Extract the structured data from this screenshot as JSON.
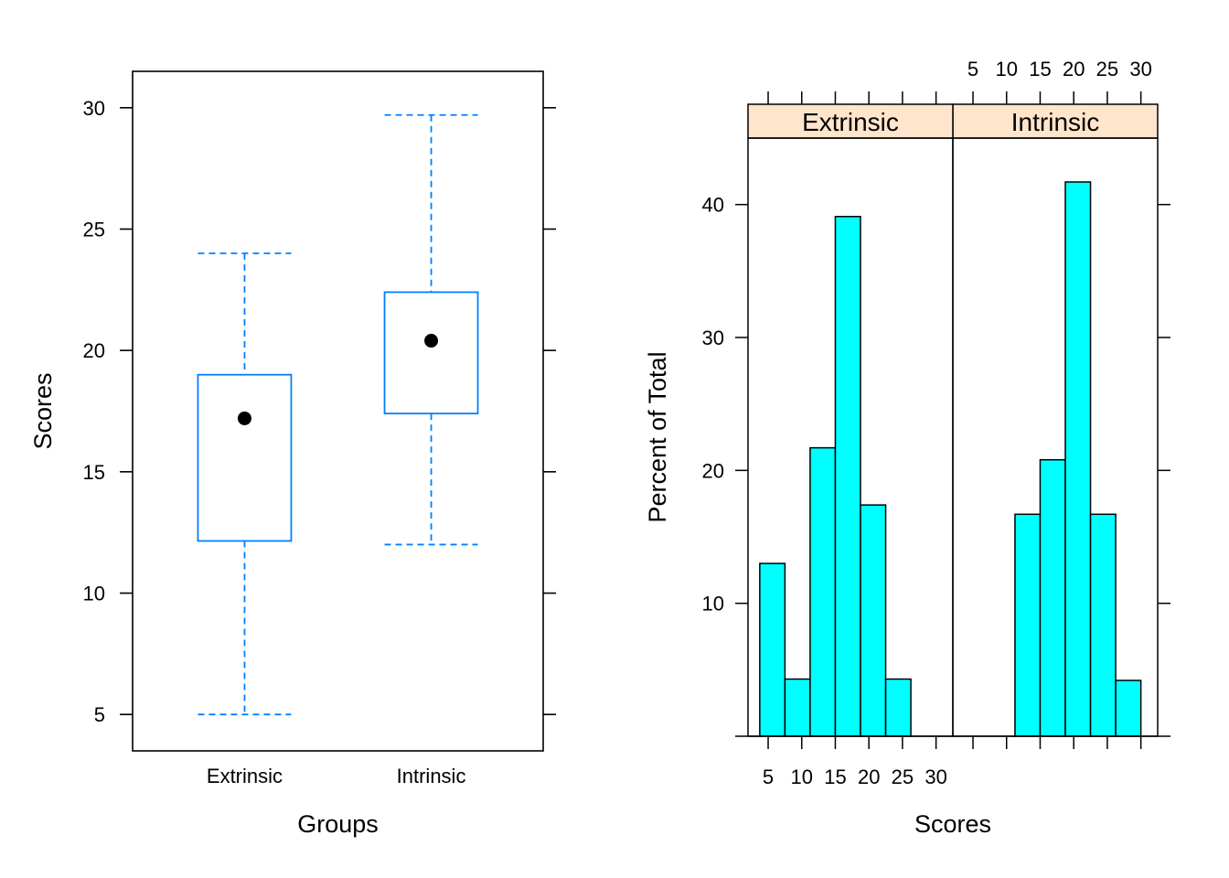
{
  "chart_data": [
    {
      "type": "boxplot",
      "xlabel": "Groups",
      "ylabel": "Scores",
      "ylim": [
        3.5,
        31.5
      ],
      "yticks": [
        5,
        10,
        15,
        20,
        25,
        30
      ],
      "categories": [
        "Extrinsic",
        "Intrinsic"
      ],
      "boxes": [
        {
          "name": "Extrinsic",
          "min": 5,
          "q1": 12.15,
          "median": 17.2,
          "q3": 19,
          "max": 24
        },
        {
          "name": "Intrinsic",
          "min": 12,
          "q1": 17.4,
          "median": 20.4,
          "q3": 22.4,
          "max": 29.7
        }
      ],
      "color": "#0080ff",
      "median_marker": "filled-dot"
    },
    {
      "type": "histogram",
      "xlabel": "Scores",
      "ylabel": "Percent of Total",
      "xlim": [
        2,
        32.5
      ],
      "ylim": [
        0,
        45
      ],
      "xticks": [
        5,
        10,
        15,
        20,
        25,
        30
      ],
      "yticks": [
        10,
        20,
        30,
        40
      ],
      "fill": "#00ffff",
      "strip_fill": "#ffe5cc",
      "panels": [
        {
          "strip": "Extrinsic",
          "bins": [
            {
              "x0": 3.75,
              "x1": 7.5,
              "value": 13
            },
            {
              "x0": 7.5,
              "x1": 11.25,
              "value": 4.3
            },
            {
              "x0": 11.25,
              "x1": 15,
              "value": 21.7
            },
            {
              "x0": 15,
              "x1": 18.75,
              "value": 39.1
            },
            {
              "x0": 18.75,
              "x1": 22.5,
              "value": 17.4
            },
            {
              "x0": 22.5,
              "x1": 26.25,
              "value": 4.3
            },
            {
              "x0": 26.25,
              "x1": 30,
              "value": 0
            }
          ]
        },
        {
          "strip": "Intrinsic",
          "bins": [
            {
              "x0": 11.25,
              "x1": 15,
              "value": 16.7
            },
            {
              "x0": 15,
              "x1": 18.75,
              "value": 20.8
            },
            {
              "x0": 18.75,
              "x1": 22.5,
              "value": 41.7
            },
            {
              "x0": 22.5,
              "x1": 26.25,
              "value": 16.7
            },
            {
              "x0": 26.25,
              "x1": 30,
              "value": 4.2
            }
          ]
        }
      ]
    }
  ]
}
